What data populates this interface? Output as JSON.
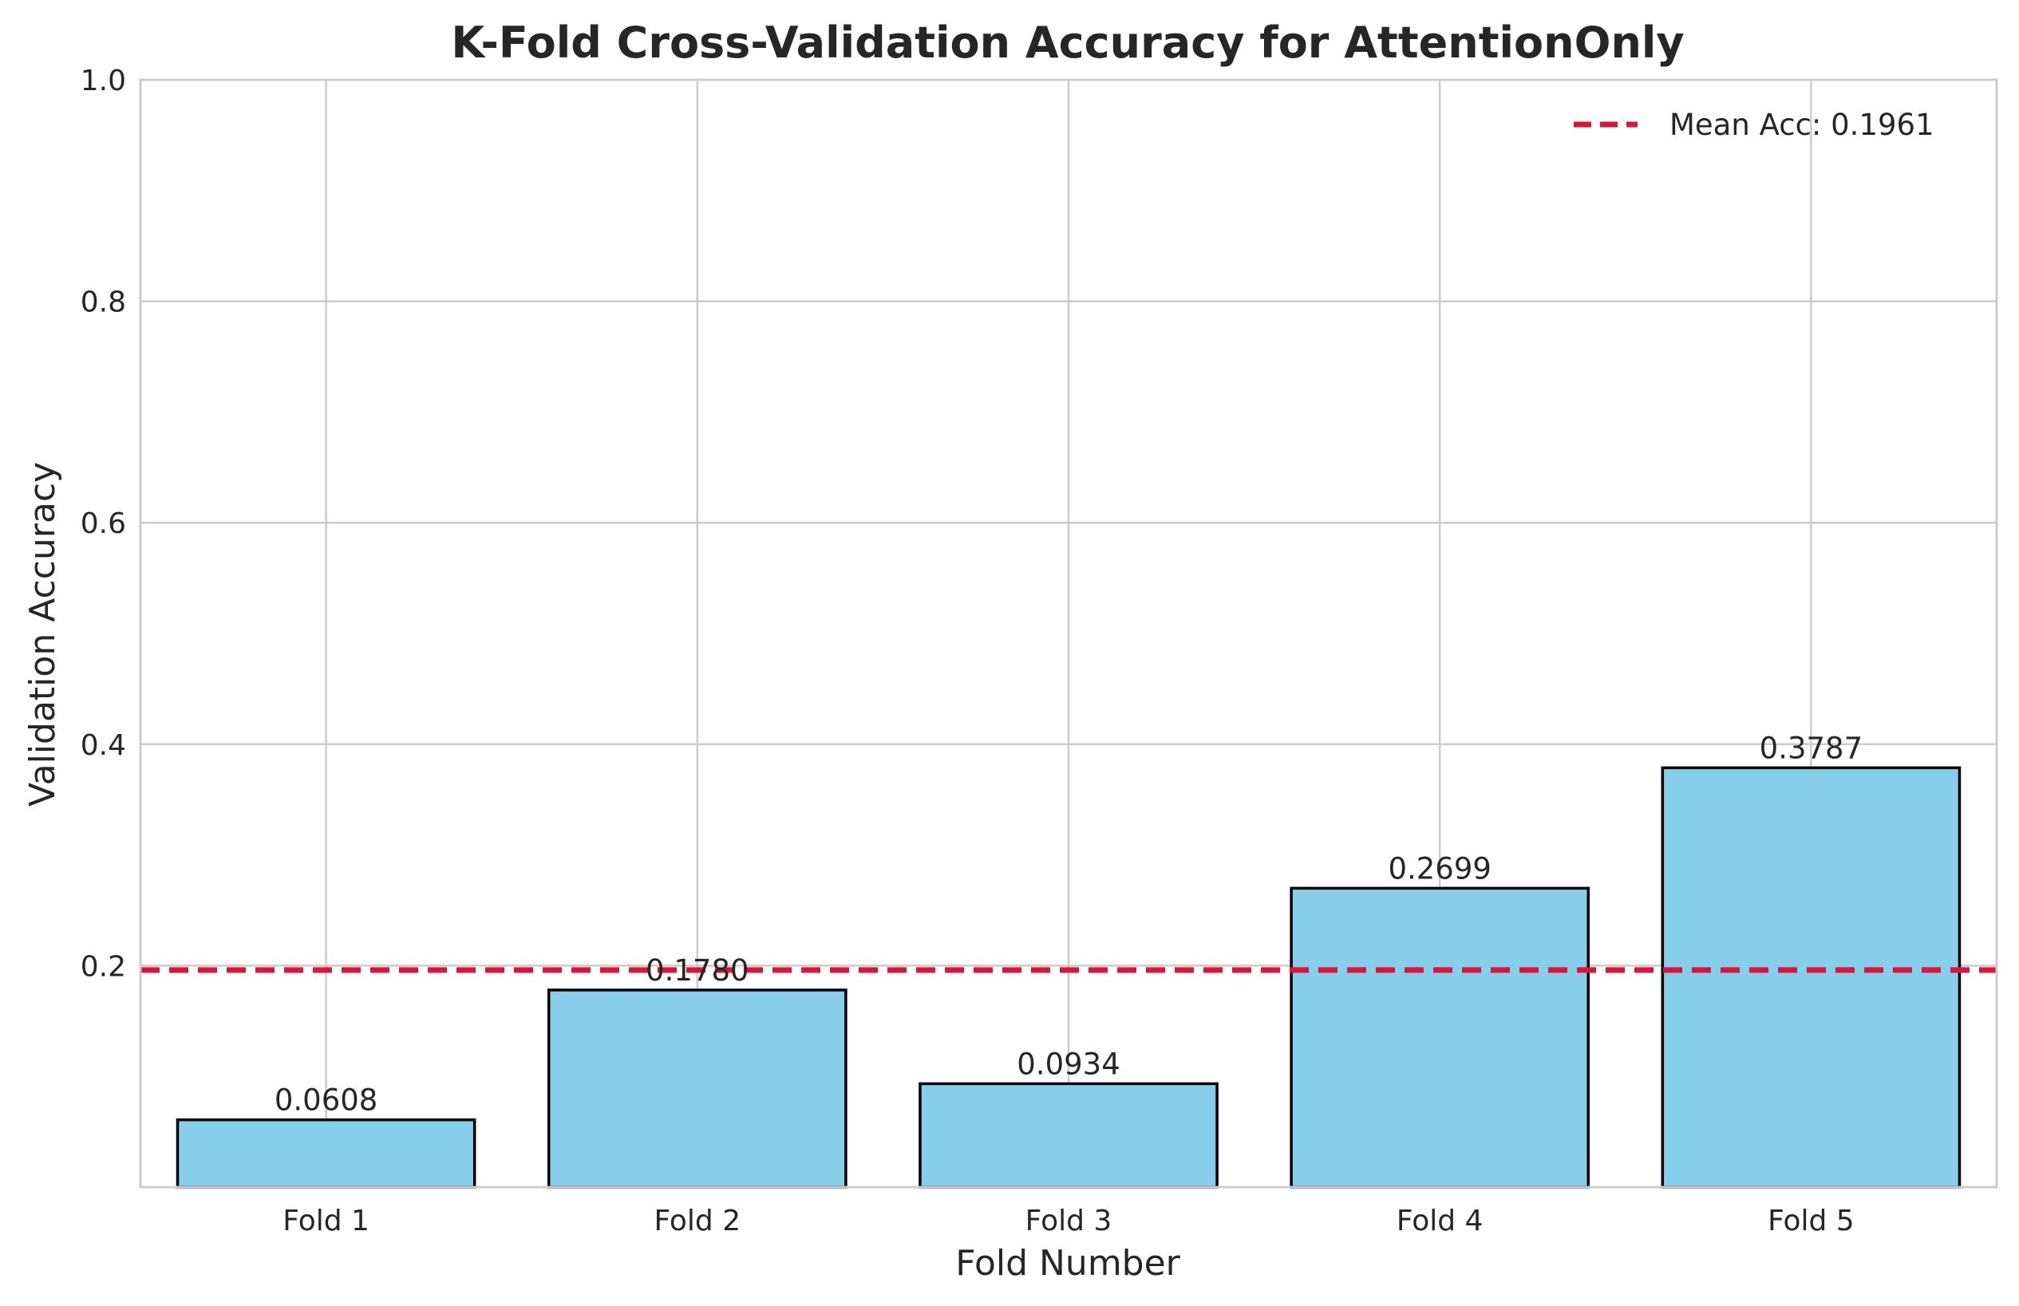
{
  "chart_data": {
    "type": "bar",
    "title": "K-Fold Cross-Validation Accuracy for AttentionOnly",
    "xlabel": "Fold Number",
    "ylabel": "Validation Accuracy",
    "categories": [
      "Fold 1",
      "Fold 2",
      "Fold 3",
      "Fold 4",
      "Fold 5"
    ],
    "values": [
      0.0608,
      0.178,
      0.0934,
      0.2699,
      0.3787
    ],
    "value_labels": [
      "0.0608",
      "0.1780",
      "0.0934",
      "0.2699",
      "0.3787"
    ],
    "ylim": [
      0,
      1.0
    ],
    "yticks": [
      0.2,
      0.4,
      0.6,
      0.8,
      1.0
    ],
    "ytick_labels": [
      "0.2",
      "0.4",
      "0.6",
      "0.8",
      "1.0"
    ],
    "mean_line": {
      "value": 0.1961,
      "label": "Mean Acc: 0.1961",
      "style": "dashed"
    },
    "grid": true,
    "legend_position": "top-right",
    "colors": {
      "bar_fill": "#87CEEB",
      "bar_edge": "#000000",
      "mean_line": "#DC143C",
      "grid": "#cccccc",
      "text": "#262626"
    }
  }
}
